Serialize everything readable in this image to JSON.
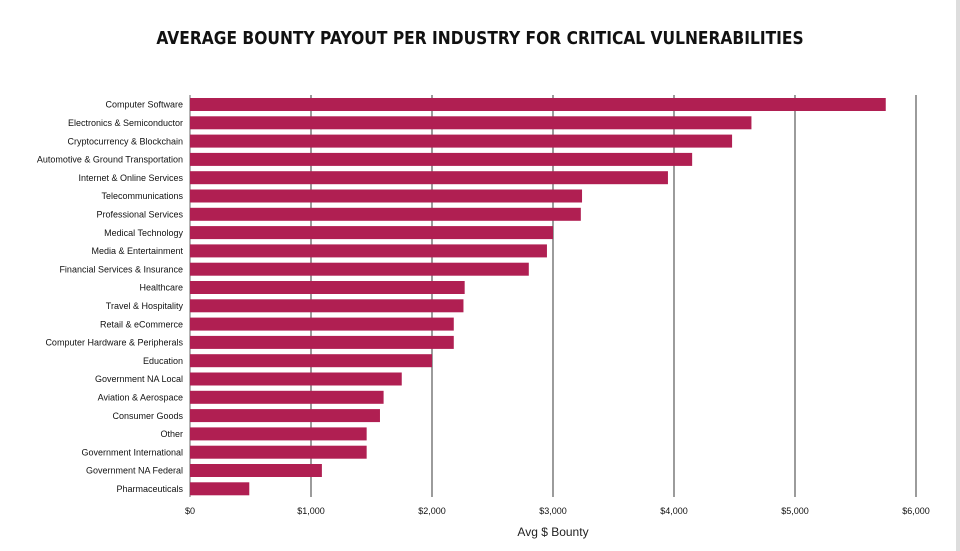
{
  "chart_data": {
    "type": "bar",
    "orientation": "horizontal",
    "title": "AVERAGE BOUNTY PAYOUT PER INDUSTRY FOR CRITICAL VULNERABILITIES",
    "xlabel": "Avg $ Bounty",
    "ylabel": "",
    "xlim": [
      0,
      6000
    ],
    "xticks": [
      0,
      1000,
      2000,
      3000,
      4000,
      5000,
      6000
    ],
    "xtick_labels": [
      "$0",
      "$1,000",
      "$2,000",
      "$3,000",
      "$4,000",
      "$5,000",
      "$6,000"
    ],
    "grid": "vertical",
    "bar_color": "#b01f52",
    "categories": [
      "Computer Software",
      "Electronics & Semiconductor",
      "Cryptocurrency & Blockchain",
      "Automotive & Ground Transportation",
      "Internet & Online Services",
      "Telecommunications",
      "Professional Services",
      "Medical Technology",
      "Media & Entertainment",
      "Financial Services & Insurance",
      "Healthcare",
      "Travel & Hospitality",
      "Retail & eCommerce",
      "Computer Hardware & Peripherals",
      "Education",
      "Government NA Local",
      "Aviation & Aerospace",
      "Consumer Goods",
      "Other",
      "Government International",
      "Government NA Federal",
      "Pharmaceuticals"
    ],
    "values": [
      5750,
      4640,
      4480,
      4150,
      3950,
      3240,
      3230,
      3000,
      2950,
      2800,
      2270,
      2260,
      2180,
      2180,
      2000,
      1750,
      1600,
      1570,
      1460,
      1460,
      1090,
      490
    ]
  }
}
